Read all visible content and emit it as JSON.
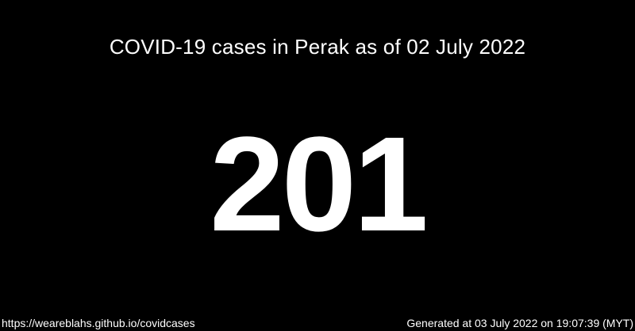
{
  "card": {
    "title": "COVID-19 cases in Perak as of 02 July 2022",
    "case_count": "201",
    "footer": {
      "url": "https://weareblahs.github.io/covidcases",
      "generated": "Generated at 03 July 2022 on 19:07:39 (MYT)"
    }
  },
  "colors": {
    "background": "#000000",
    "text": "#ffffff"
  }
}
